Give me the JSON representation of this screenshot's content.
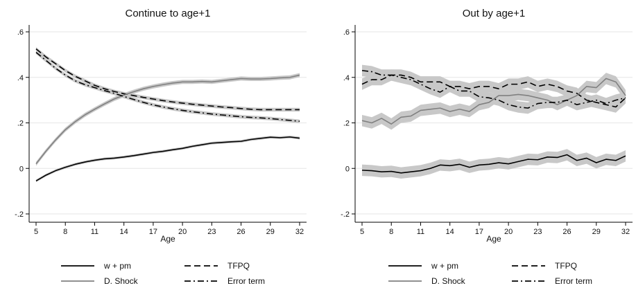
{
  "chart_data": [
    {
      "type": "line",
      "title": "Continue to age+1",
      "xlabel": "Age",
      "ylabel": "",
      "xlim": [
        5,
        32
      ],
      "ylim": [
        -0.2,
        0.6
      ],
      "xticks": [
        5,
        8,
        11,
        14,
        17,
        20,
        23,
        26,
        29,
        32
      ],
      "yticks": [
        -0.2,
        0,
        0.2,
        0.4,
        0.6
      ],
      "ytick_labels": [
        "-.2",
        "0",
        ".2",
        ".4",
        ".6"
      ],
      "grid": true,
      "x": [
        5,
        6,
        7,
        8,
        9,
        10,
        11,
        12,
        13,
        14,
        15,
        16,
        17,
        18,
        19,
        20,
        21,
        22,
        23,
        24,
        25,
        26,
        27,
        28,
        29,
        30,
        31,
        32
      ],
      "series": [
        {
          "name": "w + pm",
          "color": "#000000",
          "dash": "solid",
          "band": 0.006,
          "values": [
            -0.055,
            -0.03,
            -0.01,
            0.005,
            0.018,
            0.028,
            0.036,
            0.042,
            0.045,
            0.05,
            0.056,
            0.063,
            0.07,
            0.075,
            0.082,
            0.088,
            0.097,
            0.104,
            0.111,
            0.114,
            0.117,
            0.119,
            0.127,
            0.132,
            0.137,
            0.135,
            0.138,
            0.133
          ]
        },
        {
          "name": "TFPQ",
          "color": "#000000",
          "dash": "dash",
          "band": 0.008,
          "values": [
            0.525,
            0.49,
            0.46,
            0.43,
            0.405,
            0.385,
            0.365,
            0.35,
            0.338,
            0.328,
            0.32,
            0.312,
            0.305,
            0.298,
            0.292,
            0.287,
            0.282,
            0.278,
            0.274,
            0.27,
            0.267,
            0.263,
            0.26,
            0.258,
            0.258,
            0.258,
            0.258,
            0.258
          ]
        },
        {
          "name": "D. Shock",
          "color": "#808080",
          "dash": "solid",
          "band": 0.009,
          "values": [
            0.02,
            0.075,
            0.125,
            0.17,
            0.205,
            0.235,
            0.26,
            0.283,
            0.305,
            0.322,
            0.337,
            0.35,
            0.36,
            0.368,
            0.375,
            0.38,
            0.38,
            0.382,
            0.38,
            0.385,
            0.39,
            0.395,
            0.393,
            0.393,
            0.395,
            0.398,
            0.4,
            0.41
          ]
        },
        {
          "name": "Error term",
          "color": "#000000",
          "dash": "dashdot",
          "band": 0.008,
          "values": [
            0.51,
            0.475,
            0.44,
            0.41,
            0.385,
            0.368,
            0.355,
            0.342,
            0.33,
            0.316,
            0.303,
            0.29,
            0.279,
            0.27,
            0.262,
            0.255,
            0.249,
            0.244,
            0.239,
            0.235,
            0.231,
            0.227,
            0.224,
            0.222,
            0.219,
            0.215,
            0.211,
            0.207
          ]
        }
      ],
      "legend": {
        "position": "bottom",
        "entries": [
          "w + pm",
          "TFPQ",
          "D. Shock",
          "Error term"
        ]
      }
    },
    {
      "type": "line",
      "title": "Out by age+1",
      "xlabel": "Age",
      "ylabel": "",
      "xlim": [
        5,
        32
      ],
      "ylim": [
        -0.2,
        0.6
      ],
      "xticks": [
        5,
        8,
        11,
        14,
        17,
        20,
        23,
        26,
        29,
        32
      ],
      "yticks": [
        -0.2,
        0,
        0.2,
        0.4,
        0.6
      ],
      "ytick_labels": [
        "-.2",
        "0",
        ".2",
        ".4",
        ".6"
      ],
      "grid": true,
      "x": [
        5,
        6,
        7,
        8,
        9,
        10,
        11,
        12,
        13,
        14,
        15,
        16,
        17,
        18,
        19,
        20,
        21,
        22,
        23,
        24,
        25,
        26,
        27,
        28,
        29,
        30,
        31,
        32
      ],
      "series": [
        {
          "name": "w + pm",
          "color": "#000000",
          "dash": "solid",
          "band": 0.025,
          "values": [
            -0.008,
            -0.01,
            -0.015,
            -0.013,
            -0.02,
            -0.015,
            -0.01,
            0.0,
            0.015,
            0.012,
            0.018,
            0.005,
            0.015,
            0.018,
            0.025,
            0.02,
            0.03,
            0.04,
            0.038,
            0.05,
            0.048,
            0.06,
            0.035,
            0.045,
            0.025,
            0.04,
            0.035,
            0.055
          ]
        },
        {
          "name": "TFPQ",
          "color": "#000000",
          "dash": "dash",
          "band": 0.025,
          "values": [
            0.37,
            0.39,
            0.39,
            0.41,
            0.41,
            0.4,
            0.38,
            0.38,
            0.38,
            0.36,
            0.36,
            0.35,
            0.36,
            0.36,
            0.35,
            0.37,
            0.37,
            0.38,
            0.36,
            0.37,
            0.36,
            0.34,
            0.33,
            0.3,
            0.29,
            0.28,
            0.27,
            0.31
          ]
        },
        {
          "name": "D. Shock",
          "color": "#808080",
          "dash": "solid",
          "band": 0.025,
          "values": [
            0.21,
            0.2,
            0.22,
            0.195,
            0.225,
            0.23,
            0.255,
            0.26,
            0.265,
            0.25,
            0.26,
            0.25,
            0.28,
            0.29,
            0.32,
            0.32,
            0.325,
            0.32,
            0.31,
            0.3,
            0.28,
            0.3,
            0.32,
            0.36,
            0.355,
            0.395,
            0.38,
            0.32
          ]
        },
        {
          "name": "Error term",
          "color": "#000000",
          "dash": "dashdot",
          "band": 0.025,
          "values": [
            0.43,
            0.425,
            0.41,
            0.41,
            0.4,
            0.39,
            0.37,
            0.35,
            0.335,
            0.36,
            0.34,
            0.34,
            0.315,
            0.31,
            0.3,
            0.28,
            0.27,
            0.265,
            0.285,
            0.29,
            0.29,
            0.3,
            0.28,
            0.29,
            0.3,
            0.285,
            0.3,
            0.31
          ]
        }
      ],
      "legend": {
        "position": "bottom",
        "entries": [
          "w + pm",
          "TFPQ",
          "D. Shock",
          "Error term"
        ]
      }
    }
  ]
}
